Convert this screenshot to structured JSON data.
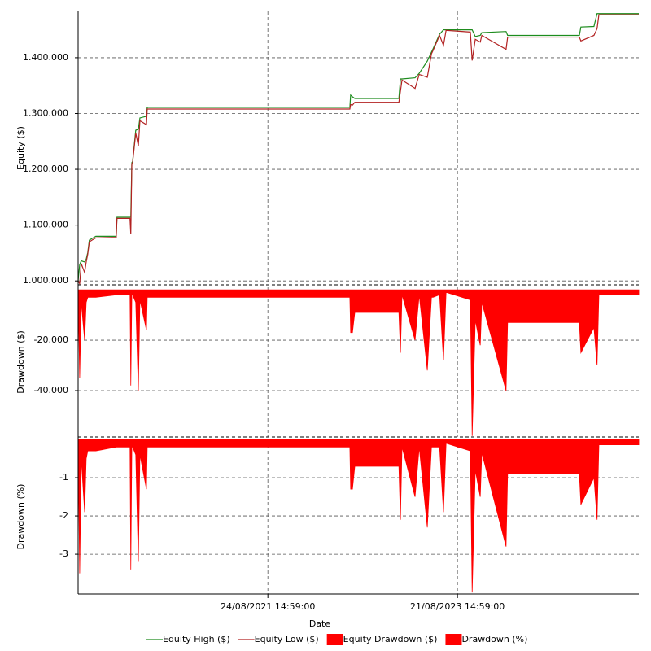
{
  "chart_data": {
    "type": "line",
    "xlabel": "Date",
    "x": [
      "2019-08-28",
      "2019-09-03",
      "2019-09-09",
      "2019-09-22",
      "2019-09-28",
      "2019-10-04",
      "2019-10-10",
      "2019-10-20",
      "2019-11-04",
      "2020-01-21",
      "2020-01-24",
      "2020-03-14",
      "2020-03-17",
      "2020-03-21",
      "2020-03-24",
      "2020-04-05",
      "2020-04-15",
      "2020-04-21",
      "2020-05-16",
      "2020-05-19",
      "2020-05-22",
      "2022-07-05",
      "2022-07-08",
      "2022-07-15",
      "2022-07-24",
      "2022-07-27",
      "2023-01-09",
      "2023-01-15",
      "2023-01-21",
      "2023-03-12",
      "2023-03-28",
      "2023-04-28",
      "2023-05-14",
      "2023-05-20",
      "2023-06-14",
      "2023-06-29",
      "2023-07-09",
      "2023-10-10",
      "2023-10-17",
      "2023-10-29",
      "2023-11-17",
      "2023-11-23",
      "2024-02-24",
      "2024-03-01",
      "2024-03-07",
      "2024-12-01",
      "2024-12-07",
      "2025-01-26",
      "2025-02-07",
      "2025-02-14",
      "2025-07-17"
    ],
    "xlim": [
      "2019-08-28",
      "2025-07-17"
    ],
    "xticks": [
      {
        "value": "2021-08-24T14:59:00",
        "label": "24/08/2021 14:59:00"
      },
      {
        "value": "2023-08-21T14:59:00",
        "label": "21/08/2023 14:59:00"
      }
    ],
    "grid": true,
    "legend": "bottom",
    "panels": [
      {
        "type": "line",
        "ylabel": "Equity ($)",
        "ylim": [
          993000,
          1483000
        ],
        "yticks": [
          {
            "value": 1000000,
            "label": "1.000.000"
          },
          {
            "value": 1100000,
            "label": "1.100.000"
          },
          {
            "value": 1200000,
            "label": "1.200.000"
          },
          {
            "value": 1300000,
            "label": "1.300.000"
          },
          {
            "value": 1400000,
            "label": "1.400.000"
          }
        ],
        "series": [
          {
            "name": "Equity High ($)",
            "color": "#1e8c1e",
            "values": [
              1000000,
              1029000,
              1036000,
              1034000,
              1039000,
              1051000,
              1073000,
              1076000,
              1080000,
              1080000,
              1114000,
              1114000,
              1114000,
              1212000,
              1214000,
              1270000,
              1272000,
              1292000,
              1295000,
              1311000,
              1311000,
              1311000,
              1333000,
              1330000,
              1327000,
              1327000,
              1327000,
              1362000,
              1362000,
              1364000,
              1372000,
              1394000,
              1410000,
              1416000,
              1442000,
              1450000,
              1450000,
              1450000,
              1450000,
              1438000,
              1440000,
              1445000,
              1447000,
              1440000,
              1440000,
              1440000,
              1455000,
              1456000,
              1479000,
              1479000,
              1479000
            ]
          },
          {
            "name": "Equity Low ($)",
            "color": "#b22222",
            "values": [
              1000000,
              995000,
              1031000,
              1015000,
              1034000,
              1048000,
              1070000,
              1073000,
              1077000,
              1078000,
              1112000,
              1112000,
              1084000,
              1210000,
              1212000,
              1265000,
              1242000,
              1287000,
              1280000,
              1308000,
              1308000,
              1308000,
              1316000,
              1315000,
              1320000,
              1320000,
              1320000,
              1340000,
              1360000,
              1345000,
              1370000,
              1365000,
              1407000,
              1413000,
              1440000,
              1422000,
              1449000,
              1446000,
              1395000,
              1433000,
              1428000,
              1440000,
              1415000,
              1437000,
              1437000,
              1437000,
              1430000,
              1440000,
              1452000,
              1477000,
              1477000
            ]
          }
        ]
      },
      {
        "type": "area",
        "ylabel": "Drawdown ($)",
        "ylim": [
          -58400,
          1000
        ],
        "yticks": [
          {
            "value": -20000,
            "label": "-20.000"
          },
          {
            "value": -40000,
            "label": "-40.000"
          }
        ],
        "series": [
          {
            "name": "Equity Drawdown ($)",
            "color": "#ff0000",
            "values": [
              0,
              -35000,
              -5000,
              -20000,
              -5000,
              -3000,
              -3000,
              -3000,
              -3000,
              -2000,
              -2000,
              -2000,
              -38000,
              -2000,
              -2000,
              -5000,
              -40000,
              -4000,
              -16000,
              -3000,
              -3000,
              -3000,
              -17000,
              -17000,
              -9000,
              -9000,
              -9000,
              -25000,
              -2000,
              -20000,
              -2000,
              -32000,
              -3000,
              -3000,
              -2000,
              -28000,
              -1000,
              -4000,
              -58000,
              -12000,
              -22000,
              -5000,
              -40000,
              -13000,
              -13000,
              -13000,
              -25000,
              -15000,
              -30000,
              -2000,
              -2000
            ]
          }
        ]
      },
      {
        "type": "area",
        "ylabel": "Drawdown (%)",
        "ylim": [
          -4.04,
          0
        ],
        "yticks": [
          -1,
          -2,
          -3
        ],
        "series": [
          {
            "name": "Drawdown (%)",
            "color": "#ff0000",
            "values": [
              0,
              -3.5,
              -0.5,
              -1.9,
              -0.5,
              -0.3,
              -0.3,
              -0.3,
              -0.3,
              -0.2,
              -0.2,
              -0.2,
              -3.4,
              -0.2,
              -0.2,
              -0.4,
              -3.2,
              -0.4,
              -1.3,
              -0.2,
              -0.2,
              -0.2,
              -1.3,
              -1.3,
              -0.7,
              -0.7,
              -0.7,
              -2.1,
              -0.2,
              -1.5,
              -0.2,
              -2.3,
              -0.2,
              -0.2,
              -0.2,
              -1.9,
              -0.1,
              -0.3,
              -4.0,
              -0.8,
              -1.5,
              -0.35,
              -2.8,
              -0.9,
              -0.9,
              -0.9,
              -1.7,
              -1.0,
              -2.1,
              -0.14,
              -0.14
            ]
          }
        ]
      }
    ]
  }
}
